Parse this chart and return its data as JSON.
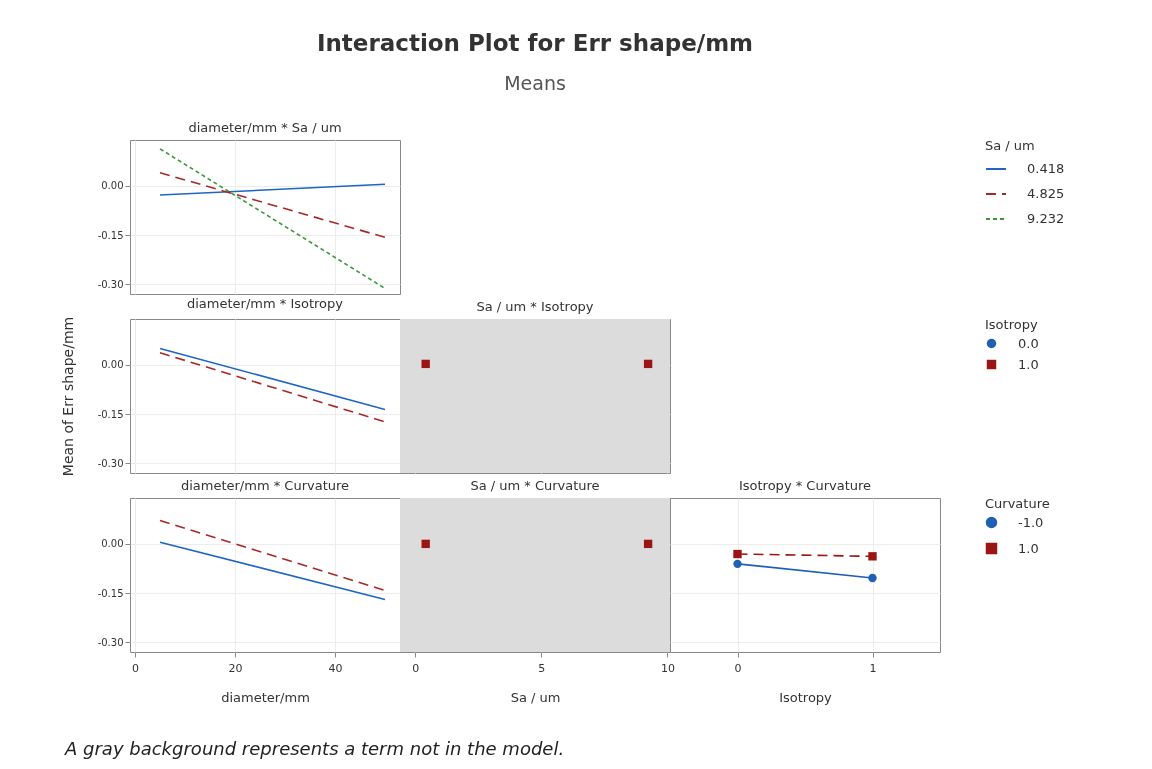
{
  "chart_data": [
    {
      "type": "other",
      "title": "Interaction Plot for Err shape/mm",
      "subtitle": "Means",
      "annotations": [
        "A gray background represents a term not in the model."
      ]
    },
    {
      "type": "line",
      "title": "diameter/mm * Sa / um",
      "legend_title": "Sa / um",
      "legend": "right",
      "grid": true,
      "tick_labels": "y",
      "xlim": [
        -1,
        53
      ],
      "xticks": [
        0,
        20,
        40
      ],
      "ylim": [
        -0.33,
        0.14
      ],
      "yticks": [
        {
          "value": 0,
          "label": "0.00"
        },
        {
          "value": -0.15,
          "label": "-0.15"
        },
        {
          "value": -0.3,
          "label": "-0.30"
        }
      ],
      "x": [
        5,
        50
      ],
      "series": [
        {
          "name": "0.418",
          "color": "#1f66c2",
          "line_style": "solid",
          "values": [
            -0.028,
            0.005
          ]
        },
        {
          "name": "4.825",
          "color": "#a82828",
          "line_style": "dashed",
          "values": [
            0.04,
            -0.157
          ]
        },
        {
          "name": "9.232",
          "color": "#3a9a3a",
          "line_style": "dotted",
          "values": [
            0.113,
            -0.313
          ]
        }
      ]
    },
    {
      "type": "line",
      "title": "diameter/mm * Isotropy",
      "ylabel": "Mean of Err shape/mm",
      "grid": true,
      "tick_labels": "y",
      "xlim": [
        -1,
        53
      ],
      "xticks": [
        0,
        20,
        40
      ],
      "ylim": [
        -0.33,
        0.14
      ],
      "yticks": [
        {
          "value": 0,
          "label": "0.00"
        },
        {
          "value": -0.15,
          "label": "-0.15"
        },
        {
          "value": -0.3,
          "label": "-0.30"
        }
      ],
      "x": [
        5,
        50
      ],
      "series": [
        {
          "color": "#1f66c2",
          "line_style": "solid",
          "values": [
            0.05,
            -0.136
          ]
        },
        {
          "color": "#a82828",
          "line_style": "dashed",
          "values": [
            0.037,
            -0.174
          ]
        }
      ]
    },
    {
      "type": "scatter",
      "title": "Sa / um * Isotropy",
      "legend_title": "Isotropy",
      "legend": "right",
      "grid": true,
      "tick_labels": false,
      "xlim": [
        -0.6,
        10.1
      ],
      "xticks": [
        0,
        5,
        10
      ],
      "ylim": [
        -0.33,
        0.14
      ],
      "yticks": [
        0,
        -0.15,
        -0.3
      ],
      "x": [
        0.418,
        9.232
      ],
      "bands": [
        {
          "axis": "x",
          "from": -0.6,
          "to": 10.1,
          "color": "#dcdcdc"
        }
      ],
      "series": [
        {
          "name": "0.0",
          "color": "#1f5fb4",
          "marker": "circle",
          "values": [
            null,
            null
          ]
        },
        {
          "name": "1.0",
          "color": "#9b1515",
          "marker": "square",
          "values": [
            0.003,
            0.003
          ]
        }
      ]
    },
    {
      "type": "line",
      "title": "diameter/mm * Curvature",
      "xlabel": "diameter/mm",
      "grid": true,
      "xlim": [
        -1,
        53
      ],
      "xticks": [
        0,
        20,
        40
      ],
      "ylim": [
        -0.33,
        0.14
      ],
      "yticks": [
        {
          "value": 0,
          "label": "0.00"
        },
        {
          "value": -0.15,
          "label": "-0.15"
        },
        {
          "value": -0.3,
          "label": "-0.30"
        }
      ],
      "x": [
        5,
        50
      ],
      "series": [
        {
          "color": "#1f66c2",
          "line_style": "solid",
          "values": [
            0.005,
            -0.17
          ]
        },
        {
          "color": "#a82828",
          "line_style": "dashed",
          "values": [
            0.071,
            -0.142
          ]
        }
      ]
    },
    {
      "type": "scatter",
      "title": "Sa / um * Curvature",
      "xlabel": "Sa / um",
      "grid": true,
      "tick_labels": "x",
      "xlim": [
        -0.6,
        10.1
      ],
      "xticks": [
        0,
        5,
        10
      ],
      "ylim": [
        -0.33,
        0.14
      ],
      "yticks": [
        0,
        -0.15,
        -0.3
      ],
      "x": [
        0.418,
        9.232
      ],
      "bands": [
        {
          "axis": "x",
          "from": -0.6,
          "to": 10.1,
          "color": "#dcdcdc"
        }
      ],
      "series": [
        {
          "color": "#1f5fb4",
          "marker": "circle",
          "values": [
            null,
            null
          ]
        },
        {
          "color": "#9b1515",
          "marker": "square",
          "values": [
            0,
            0
          ]
        }
      ]
    },
    {
      "type": "line",
      "title": "Isotropy * Curvature",
      "xlabel": "Isotropy",
      "legend_title": "Curvature",
      "legend": "right",
      "grid": true,
      "tick_labels": "x",
      "xlim": [
        -0.5,
        1.5
      ],
      "xticks": [
        0,
        1
      ],
      "ylim": [
        -0.33,
        0.14
      ],
      "yticks": [
        0,
        -0.15,
        -0.3
      ],
      "x": [
        0,
        1
      ],
      "series": [
        {
          "name": "-1.0",
          "color": "#1f5fb4",
          "marker": "circle",
          "line_style": "solid",
          "values": [
            -0.061,
            -0.104
          ]
        },
        {
          "name": "1.0",
          "color": "#9b1515",
          "marker": "square",
          "line_style": "dashed",
          "values": [
            -0.031,
            -0.038
          ]
        }
      ]
    }
  ]
}
